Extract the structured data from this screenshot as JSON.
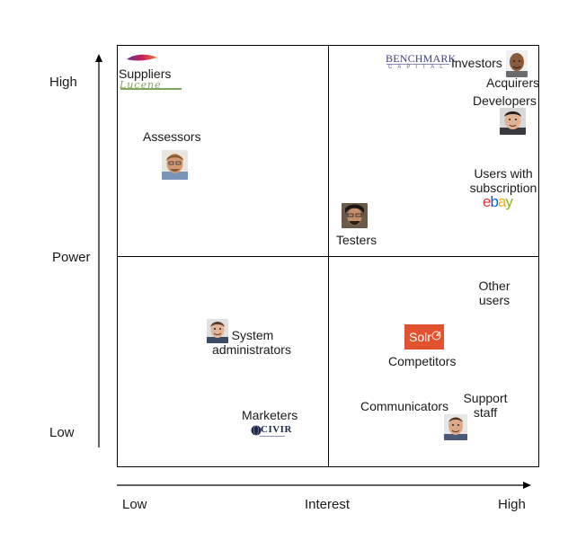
{
  "axes": {
    "y_label": "Power",
    "y_high": "High",
    "y_low": "Low",
    "x_label": "Interest",
    "x_low": "Low",
    "x_high": "High"
  },
  "stakeholders": {
    "suppliers": "Suppliers",
    "assessors": "Assessors",
    "investors": "Investors",
    "acquirers": "Acquirers",
    "developers": "Developers",
    "users_with_subscription": [
      "Users with",
      "subscription"
    ],
    "testers": "Testers",
    "other_users": [
      "Other",
      "users"
    ],
    "system_administrators": [
      "System",
      "administrators"
    ],
    "competitors": "Competitors",
    "marketers": "Marketers",
    "communicators": "Communicators",
    "support_staff": [
      "Support",
      "staff"
    ]
  },
  "logos": {
    "benchmark": "BENCHMARK",
    "benchmark_sub": "CAPITAL",
    "lucene": "Lucene",
    "ebay": [
      "e",
      "b",
      "a",
      "y"
    ],
    "solr": "Solr",
    "civir": "CIVIR"
  }
}
